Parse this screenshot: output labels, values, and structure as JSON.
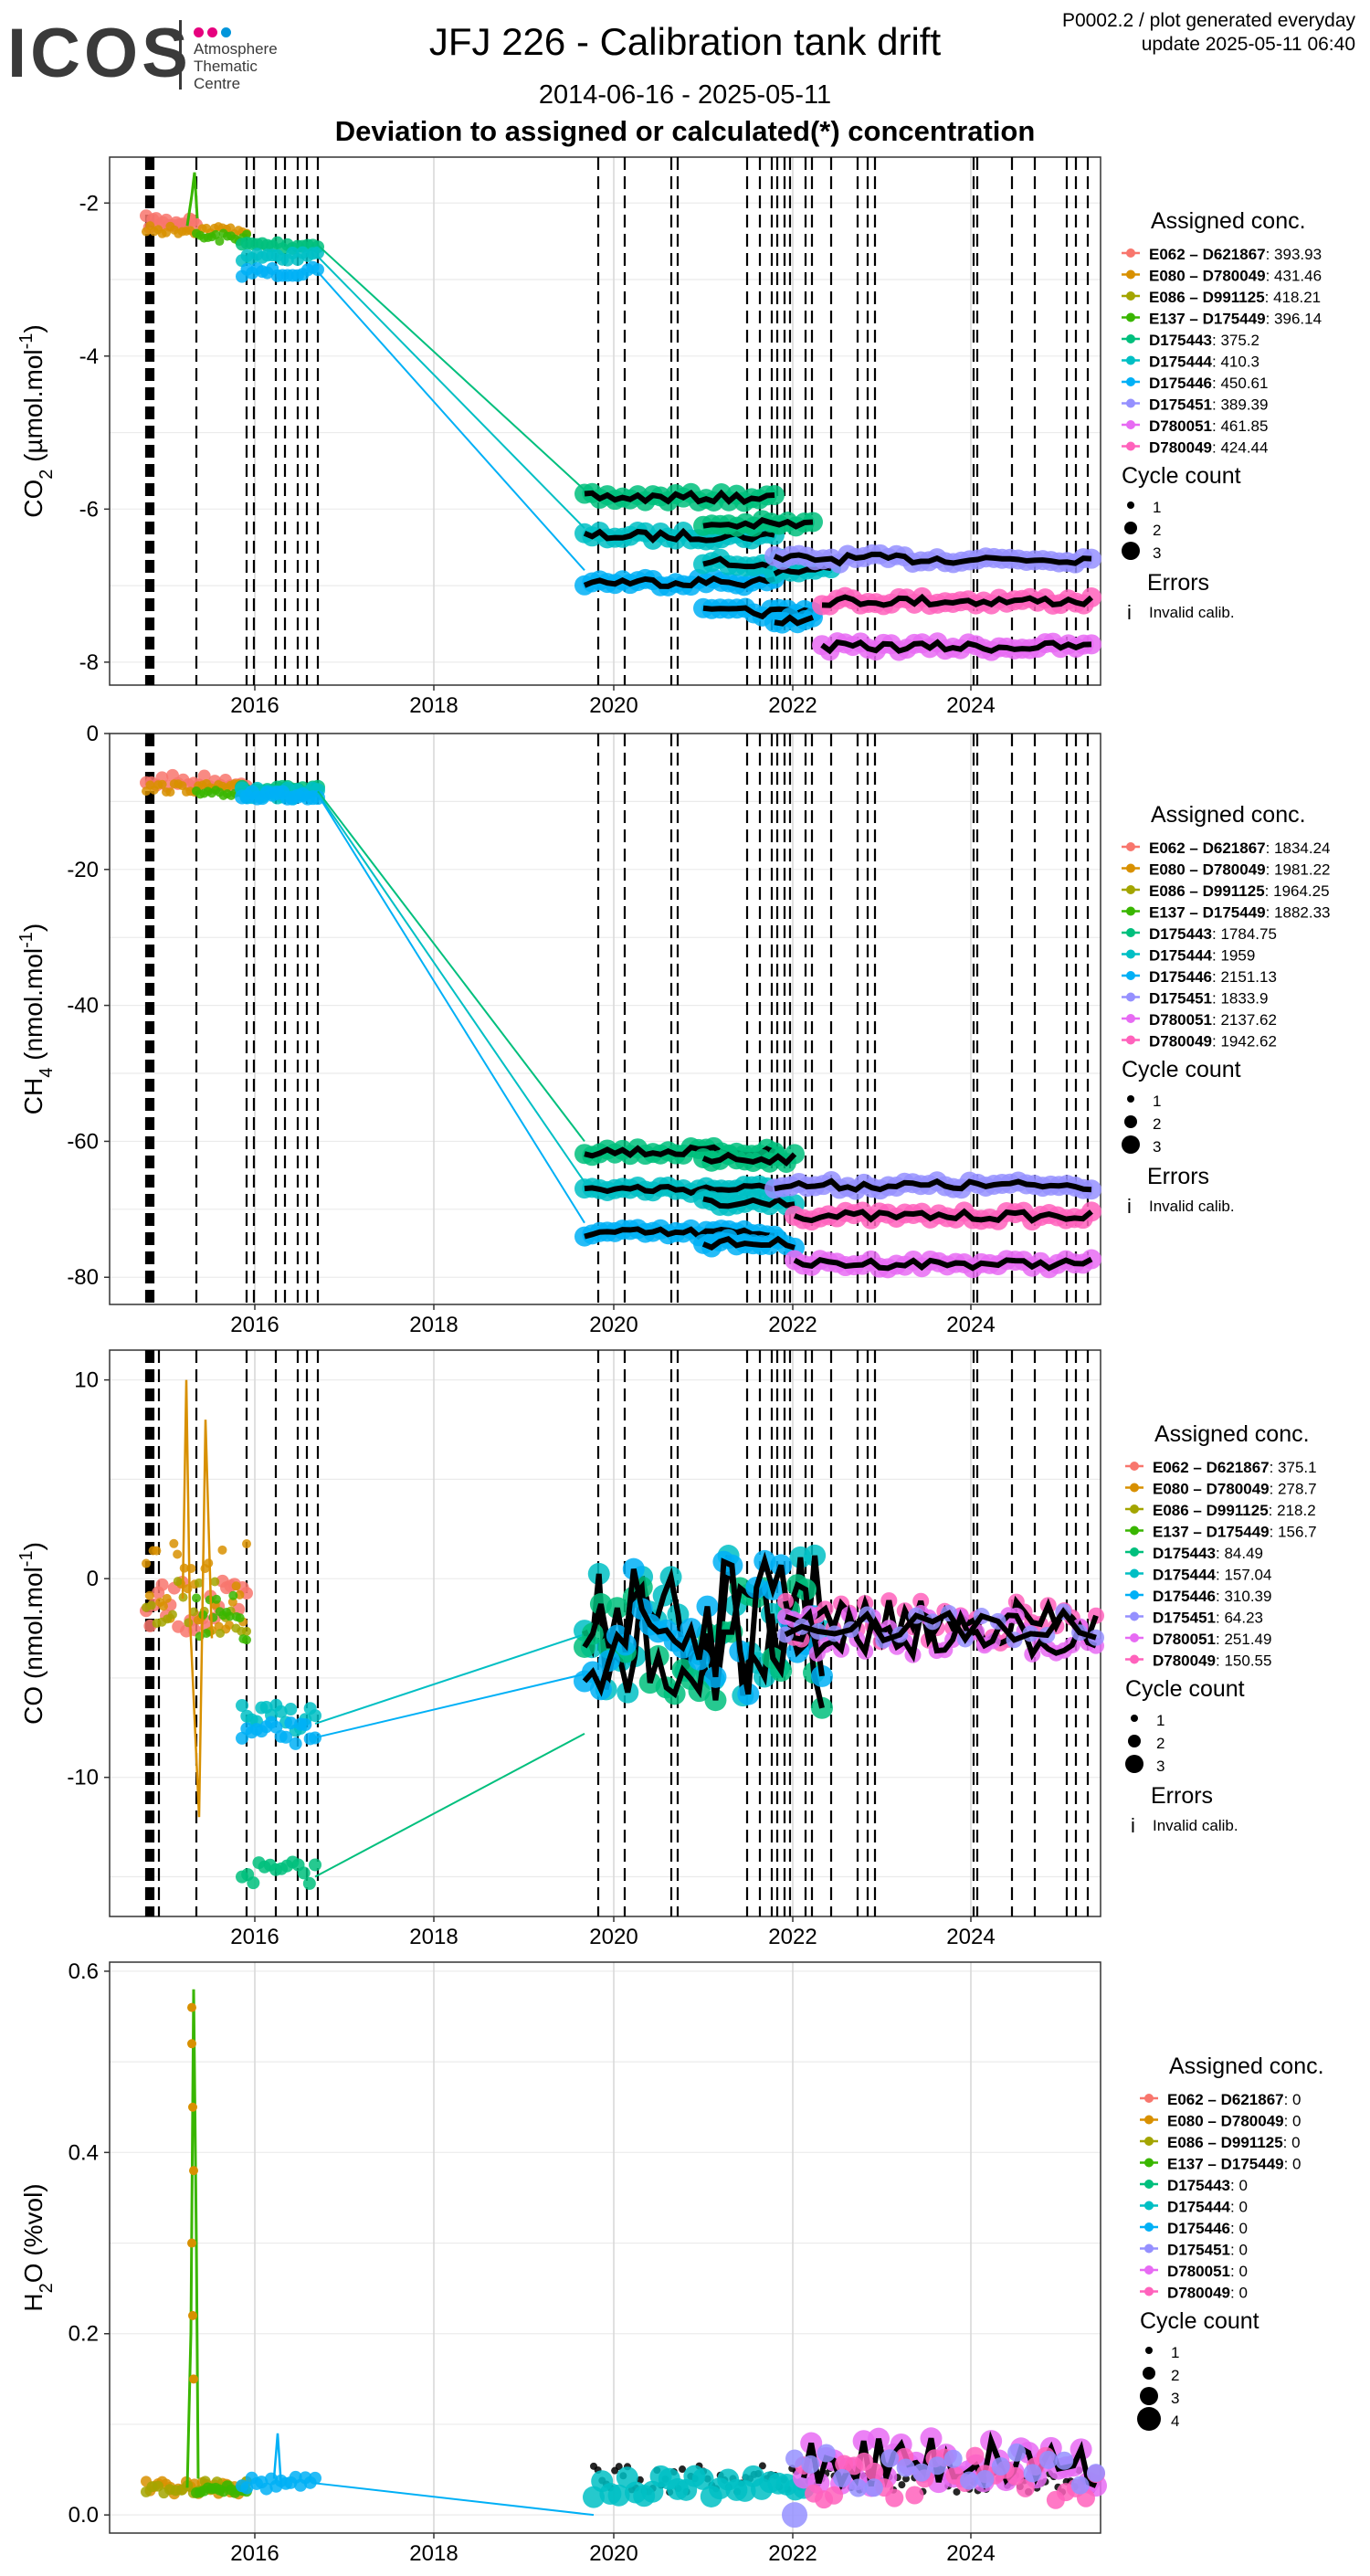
{
  "header": {
    "title": "JFJ 226 - Calibration tank drift",
    "date_range": "2014-06-16 - 2025-05-11",
    "subtitle": "Deviation to assigned or calculated(*) concentration",
    "plot_id": "P0002.2 / plot generated everyday",
    "update": "update  2025-05-11 06:40"
  },
  "logo": {
    "word": "ICOS",
    "lines": [
      "Atmosphere",
      "Thematic",
      "Centre"
    ],
    "dot_colors": [
      "#e6007e",
      "#e6007e",
      "#0095db"
    ]
  },
  "series_colors": [
    "#F8766D",
    "#D89000",
    "#A3A500",
    "#39B600",
    "#00BF7D",
    "#00BFC4",
    "#00B0F6",
    "#9590FF",
    "#E76BF3",
    "#FF62BC"
  ],
  "chart_data": [
    {
      "type": "scatter",
      "ylabel_species": "CO",
      "ylabel_sub": "2",
      "ylabel_unit": " (µmol.mol",
      "ylabel_sup": "-1",
      "ylabel_close": ")",
      "x_ticks": [
        "2016",
        "2018",
        "2020",
        "2022",
        "2024"
      ],
      "y_ticks": [
        -2,
        -4,
        -6,
        -8
      ],
      "ylim": [
        -8.3,
        -1.4
      ],
      "legend": {
        "title": "Assigned conc.",
        "entries": [
          {
            "name": "E062 – D621867",
            "value": "393.93"
          },
          {
            "name": "E080 – D780049",
            "value": "431.46"
          },
          {
            "name": "E086 – D991125",
            "value": "418.21"
          },
          {
            "name": "E137 – D175449",
            "value": "396.14"
          },
          {
            "name": "D175443",
            "value": "375.2"
          },
          {
            "name": "D175444",
            "value": "410.3"
          },
          {
            "name": "D175446",
            "value": "450.61"
          },
          {
            "name": "D175451",
            "value": "389.39"
          },
          {
            "name": "D780051",
            "value": "461.85"
          },
          {
            "name": "D780049",
            "value": "424.44"
          }
        ],
        "cycle_title": "Cycle count",
        "cycle_values": [
          "1",
          "2",
          "3"
        ],
        "errors_title": "Errors",
        "errors_symbol": "i",
        "errors_label": "Invalid calib."
      }
    },
    {
      "type": "scatter",
      "ylabel_species": "CH",
      "ylabel_sub": "4",
      "ylabel_unit": " (nmol.mol",
      "ylabel_sup": "-1",
      "ylabel_close": ")",
      "x_ticks": [
        "2016",
        "2018",
        "2020",
        "2022",
        "2024"
      ],
      "y_ticks": [
        0,
        -20,
        -40,
        -60,
        -80
      ],
      "ylim": [
        -84,
        0
      ],
      "legend": {
        "title": "Assigned conc.",
        "entries": [
          {
            "name": "E062 – D621867",
            "value": "1834.24"
          },
          {
            "name": "E080 – D780049",
            "value": "1981.22"
          },
          {
            "name": "E086 – D991125",
            "value": "1964.25"
          },
          {
            "name": "E137 – D175449",
            "value": "1882.33"
          },
          {
            "name": "D175443",
            "value": "1784.75"
          },
          {
            "name": "D175444",
            "value": "1959"
          },
          {
            "name": "D175446",
            "value": "2151.13"
          },
          {
            "name": "D175451",
            "value": "1833.9"
          },
          {
            "name": "D780051",
            "value": "2137.62"
          },
          {
            "name": "D780049",
            "value": "1942.62"
          }
        ],
        "cycle_title": "Cycle count",
        "cycle_values": [
          "1",
          "2",
          "3"
        ],
        "errors_title": "Errors",
        "errors_symbol": "i",
        "errors_label": "Invalid calib."
      }
    },
    {
      "type": "scatter",
      "ylabel_species": "CO",
      "ylabel_sub": "",
      "ylabel_unit": " (nmol.mol",
      "ylabel_sup": "-1",
      "ylabel_close": ")",
      "x_ticks": [
        "2016",
        "2018",
        "2020",
        "2022",
        "2024"
      ],
      "y_ticks": [
        10,
        0,
        -10
      ],
      "ylim": [
        -17,
        11.5
      ],
      "legend": {
        "title": "Assigned conc.",
        "entries": [
          {
            "name": "E062 – D621867",
            "value": "375.1"
          },
          {
            "name": "E080 – D780049",
            "value": "278.7"
          },
          {
            "name": "E086 – D991125",
            "value": "218.2"
          },
          {
            "name": "E137 – D175449",
            "value": "156.7"
          },
          {
            "name": "D175443",
            "value": "84.49"
          },
          {
            "name": "D175444",
            "value": "157.04"
          },
          {
            "name": "D175446",
            "value": "310.39"
          },
          {
            "name": "D175451",
            "value": "64.23"
          },
          {
            "name": "D780051",
            "value": "251.49"
          },
          {
            "name": "D780049",
            "value": "150.55"
          }
        ],
        "cycle_title": "Cycle count",
        "cycle_values": [
          "1",
          "2",
          "3"
        ],
        "errors_title": "Errors",
        "errors_symbol": "i",
        "errors_label": "Invalid calib."
      }
    },
    {
      "type": "scatter",
      "ylabel_species": "H",
      "ylabel_sub": "2",
      "ylabel_unit": "O (%vol)",
      "ylabel_sup": "",
      "ylabel_close": "",
      "x_ticks": [
        "2016",
        "2018",
        "2020",
        "2022",
        "2024"
      ],
      "y_ticks": [
        "0.0",
        "0.2",
        "0.4",
        "0.6"
      ],
      "ylim": [
        -0.02,
        0.61
      ],
      "legend": {
        "title": "Assigned conc.",
        "entries": [
          {
            "name": "E062 – D621867",
            "value": "0"
          },
          {
            "name": "E080 – D780049",
            "value": "0"
          },
          {
            "name": "E086 – D991125",
            "value": "0"
          },
          {
            "name": "E137 – D175449",
            "value": "0"
          },
          {
            "name": "D175443",
            "value": "0"
          },
          {
            "name": "D175444",
            "value": "0"
          },
          {
            "name": "D175446",
            "value": "0"
          },
          {
            "name": "D175451",
            "value": "0"
          },
          {
            "name": "D780051",
            "value": "0"
          },
          {
            "name": "D780049",
            "value": "0"
          }
        ],
        "cycle_title": "Cycle count",
        "cycle_values": [
          "1",
          "2",
          "3",
          "4"
        ]
      }
    }
  ]
}
